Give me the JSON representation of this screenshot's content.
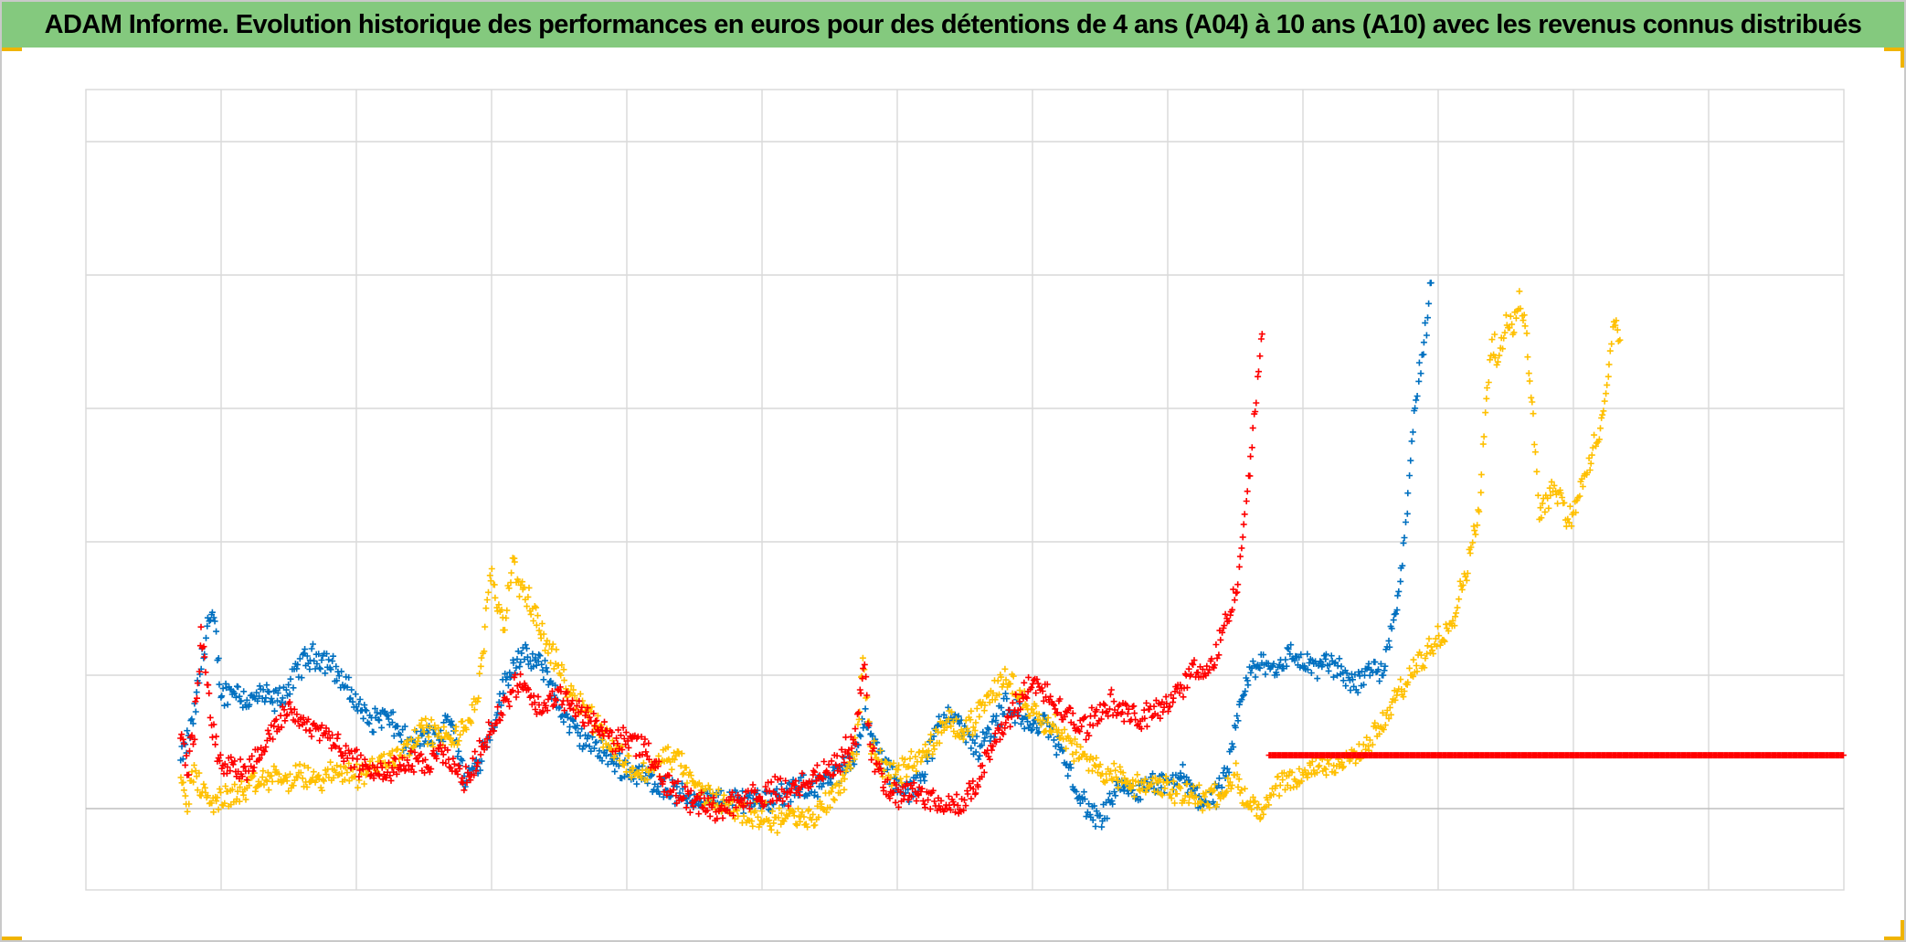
{
  "chart_data": {
    "type": "scatter",
    "title": "ADAM Informe. Evolution historique des performances en euros pour des détentions de 4 ans (A04) à 10 ans (A10) avec les revenus connus distribués",
    "xlabel": "",
    "ylabel": "",
    "xlim": [
      0,
      13
    ],
    "ylim": [
      -0.6,
      5.4
    ],
    "grid": true,
    "legend": "none",
    "marker": "+",
    "series": [
      {
        "color": "#0070c0",
        "anchors": [
          [
            0.7,
            0.35
          ],
          [
            0.75,
            0.5
          ],
          [
            0.8,
            0.7
          ],
          [
            0.85,
            1.05
          ],
          [
            0.9,
            1.4
          ],
          [
            0.95,
            1.4
          ],
          [
            1.0,
            0.85
          ],
          [
            1.1,
            0.9
          ],
          [
            1.2,
            0.8
          ],
          [
            1.3,
            0.85
          ],
          [
            1.4,
            0.8
          ],
          [
            1.5,
            0.9
          ],
          [
            1.6,
            1.1
          ],
          [
            1.7,
            1.15
          ],
          [
            1.8,
            1.1
          ],
          [
            1.9,
            0.95
          ],
          [
            2.0,
            0.8
          ],
          [
            2.1,
            0.65
          ],
          [
            2.2,
            0.7
          ],
          [
            2.3,
            0.6
          ],
          [
            2.4,
            0.45
          ],
          [
            2.5,
            0.55
          ],
          [
            2.6,
            0.5
          ],
          [
            2.7,
            0.7
          ],
          [
            2.8,
            0.2
          ],
          [
            2.9,
            0.35
          ],
          [
            3.0,
            0.6
          ],
          [
            3.1,
            0.95
          ],
          [
            3.2,
            1.15
          ],
          [
            3.3,
            1.1
          ],
          [
            3.4,
            1.05
          ],
          [
            3.5,
            0.75
          ],
          [
            3.6,
            0.6
          ],
          [
            3.7,
            0.5
          ],
          [
            3.8,
            0.45
          ],
          [
            3.9,
            0.35
          ],
          [
            4.0,
            0.3
          ],
          [
            4.1,
            0.25
          ],
          [
            4.2,
            0.2
          ],
          [
            4.3,
            0.15
          ],
          [
            4.4,
            0.1
          ],
          [
            4.5,
            0.08
          ],
          [
            4.6,
            0.07
          ],
          [
            4.7,
            0.05
          ],
          [
            4.8,
            0.06
          ],
          [
            4.9,
            0.08
          ],
          [
            5.0,
            0.07
          ],
          [
            5.1,
            0.08
          ],
          [
            5.2,
            0.12
          ],
          [
            5.3,
            0.15
          ],
          [
            5.4,
            0.18
          ],
          [
            5.5,
            0.2
          ],
          [
            5.6,
            0.3
          ],
          [
            5.7,
            0.45
          ],
          [
            5.75,
            0.7
          ],
          [
            5.8,
            0.55
          ],
          [
            5.9,
            0.35
          ],
          [
            6.0,
            0.15
          ],
          [
            6.1,
            0.12
          ],
          [
            6.2,
            0.3
          ],
          [
            6.3,
            0.6
          ],
          [
            6.4,
            0.75
          ],
          [
            6.5,
            0.55
          ],
          [
            6.6,
            0.45
          ],
          [
            6.7,
            0.6
          ],
          [
            6.8,
            0.8
          ],
          [
            6.9,
            0.7
          ],
          [
            7.0,
            0.6
          ],
          [
            7.1,
            0.65
          ],
          [
            7.2,
            0.45
          ],
          [
            7.3,
            0.2
          ],
          [
            7.4,
            0.0
          ],
          [
            7.5,
            -0.1
          ],
          [
            7.6,
            0.1
          ],
          [
            7.7,
            0.15
          ],
          [
            7.8,
            0.12
          ],
          [
            7.9,
            0.18
          ],
          [
            8.0,
            0.15
          ],
          [
            8.1,
            0.25
          ],
          [
            8.2,
            0.1
          ],
          [
            8.3,
            0.05
          ],
          [
            8.4,
            0.15
          ],
          [
            8.45,
            0.3
          ],
          [
            8.5,
            0.55
          ],
          [
            8.55,
            0.85
          ],
          [
            8.6,
            1.0
          ],
          [
            8.7,
            1.1
          ],
          [
            8.8,
            1.05
          ],
          [
            8.9,
            1.15
          ],
          [
            9.0,
            1.1
          ],
          [
            9.1,
            1.05
          ],
          [
            9.2,
            1.1
          ],
          [
            9.3,
            1.0
          ],
          [
            9.4,
            0.95
          ],
          [
            9.5,
            1.05
          ],
          [
            9.6,
            1.05
          ],
          [
            9.7,
            1.6
          ],
          [
            9.75,
            2.0
          ],
          [
            9.8,
            2.7
          ],
          [
            9.85,
            3.2
          ],
          [
            9.9,
            3.5
          ],
          [
            9.95,
            3.95
          ]
        ]
      },
      {
        "color": "#ffc000",
        "anchors": [
          [
            0.7,
            0.3
          ],
          [
            0.75,
            0.05
          ],
          [
            0.8,
            0.3
          ],
          [
            0.85,
            0.15
          ],
          [
            0.9,
            0.05
          ],
          [
            1.0,
            0.08
          ],
          [
            1.1,
            0.1
          ],
          [
            1.2,
            0.15
          ],
          [
            1.3,
            0.2
          ],
          [
            1.4,
            0.25
          ],
          [
            1.5,
            0.2
          ],
          [
            1.6,
            0.25
          ],
          [
            1.7,
            0.2
          ],
          [
            1.8,
            0.25
          ],
          [
            1.9,
            0.3
          ],
          [
            2.0,
            0.25
          ],
          [
            2.1,
            0.3
          ],
          [
            2.2,
            0.35
          ],
          [
            2.3,
            0.4
          ],
          [
            2.4,
            0.5
          ],
          [
            2.5,
            0.6
          ],
          [
            2.6,
            0.55
          ],
          [
            2.7,
            0.5
          ],
          [
            2.8,
            0.6
          ],
          [
            2.9,
            0.85
          ],
          [
            2.95,
            1.3
          ],
          [
            3.0,
            1.8
          ],
          [
            3.05,
            1.5
          ],
          [
            3.1,
            1.4
          ],
          [
            3.15,
            1.85
          ],
          [
            3.2,
            1.7
          ],
          [
            3.3,
            1.5
          ],
          [
            3.4,
            1.25
          ],
          [
            3.5,
            1.05
          ],
          [
            3.6,
            0.85
          ],
          [
            3.7,
            0.75
          ],
          [
            3.8,
            0.6
          ],
          [
            3.9,
            0.45
          ],
          [
            4.0,
            0.35
          ],
          [
            4.1,
            0.25
          ],
          [
            4.2,
            0.3
          ],
          [
            4.3,
            0.4
          ],
          [
            4.4,
            0.35
          ],
          [
            4.5,
            0.15
          ],
          [
            4.6,
            0.1
          ],
          [
            4.7,
            0.05
          ],
          [
            4.8,
            0.0
          ],
          [
            4.9,
            -0.05
          ],
          [
            5.0,
            -0.05
          ],
          [
            5.1,
            -0.08
          ],
          [
            5.2,
            -0.05
          ],
          [
            5.3,
            -0.1
          ],
          [
            5.4,
            -0.05
          ],
          [
            5.5,
            0.1
          ],
          [
            5.6,
            0.2
          ],
          [
            5.7,
            0.5
          ],
          [
            5.75,
            1.1
          ],
          [
            5.8,
            0.5
          ],
          [
            5.9,
            0.3
          ],
          [
            6.0,
            0.25
          ],
          [
            6.1,
            0.35
          ],
          [
            6.2,
            0.4
          ],
          [
            6.3,
            0.55
          ],
          [
            6.4,
            0.65
          ],
          [
            6.5,
            0.6
          ],
          [
            6.6,
            0.7
          ],
          [
            6.7,
            0.85
          ],
          [
            6.8,
            1.0
          ],
          [
            6.9,
            0.85
          ],
          [
            7.0,
            0.75
          ],
          [
            7.1,
            0.65
          ],
          [
            7.2,
            0.6
          ],
          [
            7.3,
            0.45
          ],
          [
            7.4,
            0.35
          ],
          [
            7.5,
            0.3
          ],
          [
            7.6,
            0.25
          ],
          [
            7.7,
            0.2
          ],
          [
            7.8,
            0.15
          ],
          [
            7.9,
            0.18
          ],
          [
            8.0,
            0.15
          ],
          [
            8.1,
            0.1
          ],
          [
            8.2,
            0.12
          ],
          [
            8.3,
            0.05
          ],
          [
            8.4,
            0.15
          ],
          [
            8.5,
            0.25
          ],
          [
            8.55,
            0.1
          ],
          [
            8.6,
            0.05
          ],
          [
            8.7,
            -0.05
          ],
          [
            8.8,
            0.15
          ],
          [
            8.9,
            0.2
          ],
          [
            9.0,
            0.25
          ],
          [
            9.1,
            0.3
          ],
          [
            9.2,
            0.35
          ],
          [
            9.3,
            0.35
          ],
          [
            9.4,
            0.4
          ],
          [
            9.5,
            0.5
          ],
          [
            9.6,
            0.65
          ],
          [
            9.7,
            0.85
          ],
          [
            9.8,
            1.0
          ],
          [
            9.9,
            1.15
          ],
          [
            10.0,
            1.3
          ],
          [
            10.1,
            1.4
          ],
          [
            10.2,
            1.75
          ],
          [
            10.3,
            2.2
          ],
          [
            10.35,
            3.0
          ],
          [
            10.4,
            3.5
          ],
          [
            10.45,
            3.35
          ],
          [
            10.5,
            3.7
          ],
          [
            10.55,
            3.6
          ],
          [
            10.6,
            3.85
          ],
          [
            10.65,
            3.55
          ],
          [
            10.7,
            3.0
          ],
          [
            10.75,
            2.2
          ],
          [
            10.8,
            2.35
          ],
          [
            10.9,
            2.4
          ],
          [
            10.95,
            2.15
          ],
          [
            11.0,
            2.25
          ],
          [
            11.1,
            2.5
          ],
          [
            11.15,
            2.7
          ],
          [
            11.2,
            2.8
          ],
          [
            11.3,
            3.7
          ],
          [
            11.35,
            3.45
          ]
        ]
      },
      {
        "color": "#ff0000",
        "anchors": [
          [
            0.7,
            0.6
          ],
          [
            0.75,
            0.3
          ],
          [
            0.8,
            0.55
          ],
          [
            0.85,
            1.3
          ],
          [
            0.9,
            0.95
          ],
          [
            0.95,
            0.5
          ],
          [
            1.0,
            0.35
          ],
          [
            1.1,
            0.3
          ],
          [
            1.2,
            0.3
          ],
          [
            1.3,
            0.45
          ],
          [
            1.4,
            0.6
          ],
          [
            1.5,
            0.75
          ],
          [
            1.6,
            0.65
          ],
          [
            1.7,
            0.6
          ],
          [
            1.8,
            0.55
          ],
          [
            1.9,
            0.4
          ],
          [
            2.0,
            0.35
          ],
          [
            2.1,
            0.3
          ],
          [
            2.2,
            0.28
          ],
          [
            2.3,
            0.3
          ],
          [
            2.4,
            0.35
          ],
          [
            2.5,
            0.3
          ],
          [
            2.6,
            0.4
          ],
          [
            2.7,
            0.35
          ],
          [
            2.8,
            0.2
          ],
          [
            2.9,
            0.4
          ],
          [
            3.0,
            0.6
          ],
          [
            3.1,
            0.8
          ],
          [
            3.2,
            0.95
          ],
          [
            3.3,
            0.8
          ],
          [
            3.4,
            0.75
          ],
          [
            3.5,
            0.85
          ],
          [
            3.6,
            0.75
          ],
          [
            3.7,
            0.7
          ],
          [
            3.8,
            0.6
          ],
          [
            3.9,
            0.5
          ],
          [
            4.0,
            0.55
          ],
          [
            4.1,
            0.45
          ],
          [
            4.2,
            0.35
          ],
          [
            4.3,
            0.2
          ],
          [
            4.4,
            0.1
          ],
          [
            4.5,
            0.05
          ],
          [
            4.6,
            0.02
          ],
          [
            4.7,
            0.0
          ],
          [
            4.8,
            0.05
          ],
          [
            4.9,
            0.08
          ],
          [
            5.0,
            0.1
          ],
          [
            5.1,
            0.15
          ],
          [
            5.2,
            0.1
          ],
          [
            5.3,
            0.2
          ],
          [
            5.4,
            0.25
          ],
          [
            5.5,
            0.3
          ],
          [
            5.6,
            0.4
          ],
          [
            5.7,
            0.55
          ],
          [
            5.75,
            1.15
          ],
          [
            5.8,
            0.45
          ],
          [
            5.9,
            0.2
          ],
          [
            6.0,
            0.1
          ],
          [
            6.1,
            0.12
          ],
          [
            6.2,
            0.1
          ],
          [
            6.3,
            0.05
          ],
          [
            6.4,
            0.0
          ],
          [
            6.5,
            0.05
          ],
          [
            6.6,
            0.25
          ],
          [
            6.7,
            0.45
          ],
          [
            6.8,
            0.65
          ],
          [
            6.9,
            0.8
          ],
          [
            7.0,
            0.95
          ],
          [
            7.1,
            0.85
          ],
          [
            7.2,
            0.75
          ],
          [
            7.3,
            0.65
          ],
          [
            7.4,
            0.6
          ],
          [
            7.5,
            0.75
          ],
          [
            7.6,
            0.8
          ],
          [
            7.7,
            0.7
          ],
          [
            7.8,
            0.65
          ],
          [
            7.9,
            0.75
          ],
          [
            8.0,
            0.8
          ],
          [
            8.1,
            0.9
          ],
          [
            8.2,
            1.05
          ],
          [
            8.3,
            1.0
          ],
          [
            8.4,
            1.3
          ],
          [
            8.5,
            1.6
          ],
          [
            8.55,
            2.0
          ],
          [
            8.6,
            2.5
          ],
          [
            8.65,
            3.0
          ],
          [
            8.7,
            3.65
          ]
        ],
        "flat": {
          "from": 8.75,
          "to": 13.0,
          "value": 0.4
        }
      }
    ]
  }
}
